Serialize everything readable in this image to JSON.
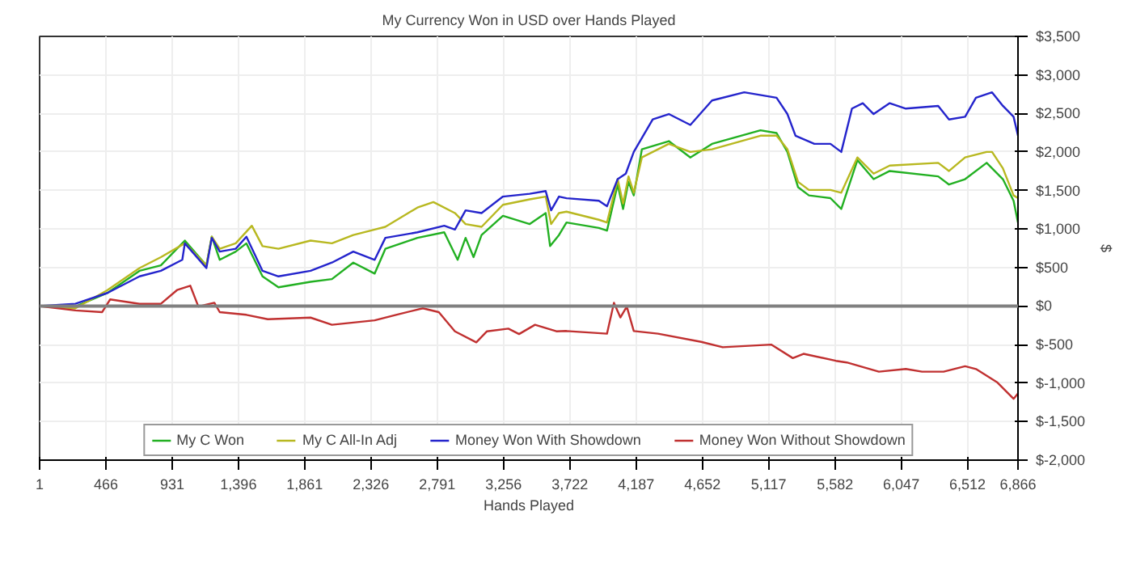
{
  "chart_data": {
    "type": "line",
    "title": "My Currency Won in USD over Hands Played",
    "xlabel": "Hands Played",
    "ylabel": "$",
    "xlim": [
      1,
      6866
    ],
    "xticks": [
      1,
      466,
      931,
      {
        "value": 1396,
        "label": "1,396"
      },
      {
        "value": 1861,
        "label": "1,861"
      },
      {
        "value": 2326,
        "label": "2,326"
      },
      {
        "value": 2791,
        "label": "2,791"
      },
      {
        "value": 3256,
        "label": "3,256"
      },
      {
        "value": 3722,
        "label": "3,722"
      },
      {
        "value": 4187,
        "label": "4,187"
      },
      {
        "value": 4652,
        "label": "4,652"
      },
      {
        "value": 5117,
        "label": "5,117"
      },
      {
        "value": 5582,
        "label": "5,582"
      },
      {
        "value": 6047,
        "label": "6,047"
      },
      {
        "value": 6512,
        "label": "6,512"
      },
      {
        "value": 6866,
        "label": "6,866"
      }
    ],
    "ylim": [
      -2000,
      3500
    ],
    "yticks": [
      {
        "value": -2000,
        "label": "$-2,000"
      },
      {
        "value": -1500,
        "label": "$-1,500"
      },
      {
        "value": -1000,
        "label": "$-1,000"
      },
      {
        "value": -500,
        "label": "$-500"
      },
      {
        "value": 0,
        "label": "$0"
      },
      {
        "value": 500,
        "label": "$500"
      },
      {
        "value": 1000,
        "label": "$1,000"
      },
      {
        "value": 1500,
        "label": "$1,500"
      },
      {
        "value": 2000,
        "label": "$2,000"
      },
      {
        "value": 2500,
        "label": "$2,500"
      },
      {
        "value": 3000,
        "label": "$3,000"
      },
      {
        "value": 3500,
        "label": "$3,500"
      }
    ],
    "grid": true,
    "legend": "bottom",
    "line_style": "solid",
    "ref_lines": [
      {
        "axis": "y",
        "value": 0,
        "color": "#808080"
      }
    ],
    "series": [
      {
        "name": "My C Won",
        "color": "#22b022",
        "x": [
          1,
          252,
          477,
          702,
          852,
          1020,
          1171,
          1209,
          1265,
          1377,
          1452,
          1565,
          1677,
          1902,
          2052,
          2202,
          2352,
          2427,
          2652,
          2840,
          2934,
          2990,
          3046,
          3102,
          3252,
          3440,
          3552,
          3583,
          3645,
          3698,
          3925,
          3982,
          4057,
          4095,
          4133,
          4170,
          4227,
          4416,
          4567,
          4719,
          5059,
          5172,
          5248,
          5323,
          5399,
          5550,
          5626,
          5739,
          5853,
          5966,
          6306,
          6382,
          6495,
          6646,
          6760,
          6835,
          6866
        ],
        "values": [
          0,
          -7,
          170,
          457,
          528,
          850,
          528,
          900,
          600,
          707,
          814,
          385,
          243,
          314,
          350,
          564,
          421,
          743,
          885,
          957,
          600,
          885,
          635,
          921,
          1171,
          1064,
          1207,
          778,
          921,
          1084,
          1014,
          979,
          1577,
          1260,
          1612,
          1436,
          2035,
          2140,
          1929,
          2105,
          2281,
          2246,
          2000,
          1542,
          1436,
          1401,
          1260,
          1894,
          1647,
          1753,
          1683,
          1577,
          1647,
          1859,
          1647,
          1366,
          1084
        ]
      },
      {
        "name": "My C All-In Adj",
        "color": "#b8b820",
        "x": [
          1,
          252,
          477,
          702,
          852,
          1020,
          1171,
          1209,
          1265,
          1377,
          1490,
          1565,
          1677,
          1902,
          2052,
          2202,
          2352,
          2427,
          2652,
          2764,
          2915,
          2990,
          3102,
          3252,
          3440,
          3552,
          3590,
          3645,
          3698,
          3925,
          3982,
          4057,
          4095,
          4133,
          4170,
          4227,
          4416,
          4567,
          4719,
          5059,
          5172,
          5248,
          5323,
          5399,
          5550,
          5626,
          5739,
          5853,
          5966,
          6306,
          6382,
          6495,
          6646,
          6684,
          6760,
          6835,
          6866
        ],
        "values": [
          0,
          -29,
          207,
          493,
          635,
          814,
          528,
          900,
          743,
          814,
          1042,
          778,
          743,
          850,
          814,
          921,
          993,
          1028,
          1278,
          1350,
          1207,
          1064,
          1028,
          1314,
          1385,
          1421,
          1064,
          1207,
          1225,
          1120,
          1084,
          1647,
          1331,
          1683,
          1471,
          1929,
          2105,
          2000,
          2035,
          2211,
          2211,
          2035,
          1612,
          1507,
          1507,
          1471,
          1929,
          1718,
          1823,
          1859,
          1753,
          1929,
          2000,
          2000,
          1788,
          1436,
          1401
        ]
      },
      {
        "name": "Money Won With Showdown",
        "color": "#2424cc",
        "x": [
          1,
          252,
          477,
          702,
          852,
          1002,
          1020,
          1171,
          1209,
          1265,
          1377,
          1452,
          1565,
          1677,
          1902,
          2052,
          2202,
          2352,
          2427,
          2652,
          2840,
          2915,
          2990,
          3102,
          3252,
          3440,
          3552,
          3590,
          3645,
          3698,
          3925,
          3982,
          4057,
          4114,
          4170,
          4303,
          4416,
          4567,
          4719,
          4945,
          5172,
          5248,
          5305,
          5437,
          5550,
          5626,
          5701,
          5777,
          5853,
          5966,
          6079,
          6306,
          6382,
          6495,
          6571,
          6684,
          6760,
          6835,
          6866
        ],
        "values": [
          0,
          30,
          170,
          385,
          457,
          600,
          814,
          493,
          885,
          707,
          743,
          900,
          457,
          385,
          457,
          564,
          707,
          600,
          885,
          957,
          1042,
          993,
          1242,
          1207,
          1421,
          1457,
          1492,
          1242,
          1421,
          1400,
          1366,
          1295,
          1647,
          1718,
          2000,
          2422,
          2492,
          2351,
          2668,
          2774,
          2703,
          2492,
          2211,
          2105,
          2105,
          2000,
          2563,
          2633,
          2492,
          2633,
          2563,
          2598,
          2422,
          2457,
          2703,
          2774,
          2598,
          2457,
          2211
        ]
      },
      {
        "name": "Money Won Without Showdown",
        "color": "#c03030",
        "x": [
          1,
          252,
          440,
          496,
          702,
          852,
          965,
          1058,
          1115,
          1227,
          1265,
          1452,
          1602,
          1902,
          2052,
          2352,
          2502,
          2690,
          2802,
          2915,
          3065,
          3140,
          3290,
          3365,
          3477,
          3627,
          3698,
          3982,
          4031,
          4076,
          4121,
          4170,
          4340,
          4643,
          4794,
          5134,
          5286,
          5361,
          5588,
          5664,
          5890,
          6079,
          6193,
          6344,
          6495,
          6571,
          6722,
          6835,
          6866
        ],
        "values": [
          0,
          -57,
          -79,
          86,
          29,
          29,
          207,
          264,
          -7,
          43,
          -79,
          -114,
          -171,
          -150,
          -243,
          -186,
          -114,
          -29,
          -79,
          -328,
          -471,
          -328,
          -293,
          -364,
          -243,
          -328,
          -324,
          -359,
          42,
          -148,
          -7,
          -324,
          -359,
          -465,
          -535,
          -500,
          -676,
          -620,
          -711,
          -732,
          -852,
          -817,
          -852,
          -852,
          -781,
          -817,
          -993,
          -1204,
          -1134
        ]
      }
    ]
  }
}
